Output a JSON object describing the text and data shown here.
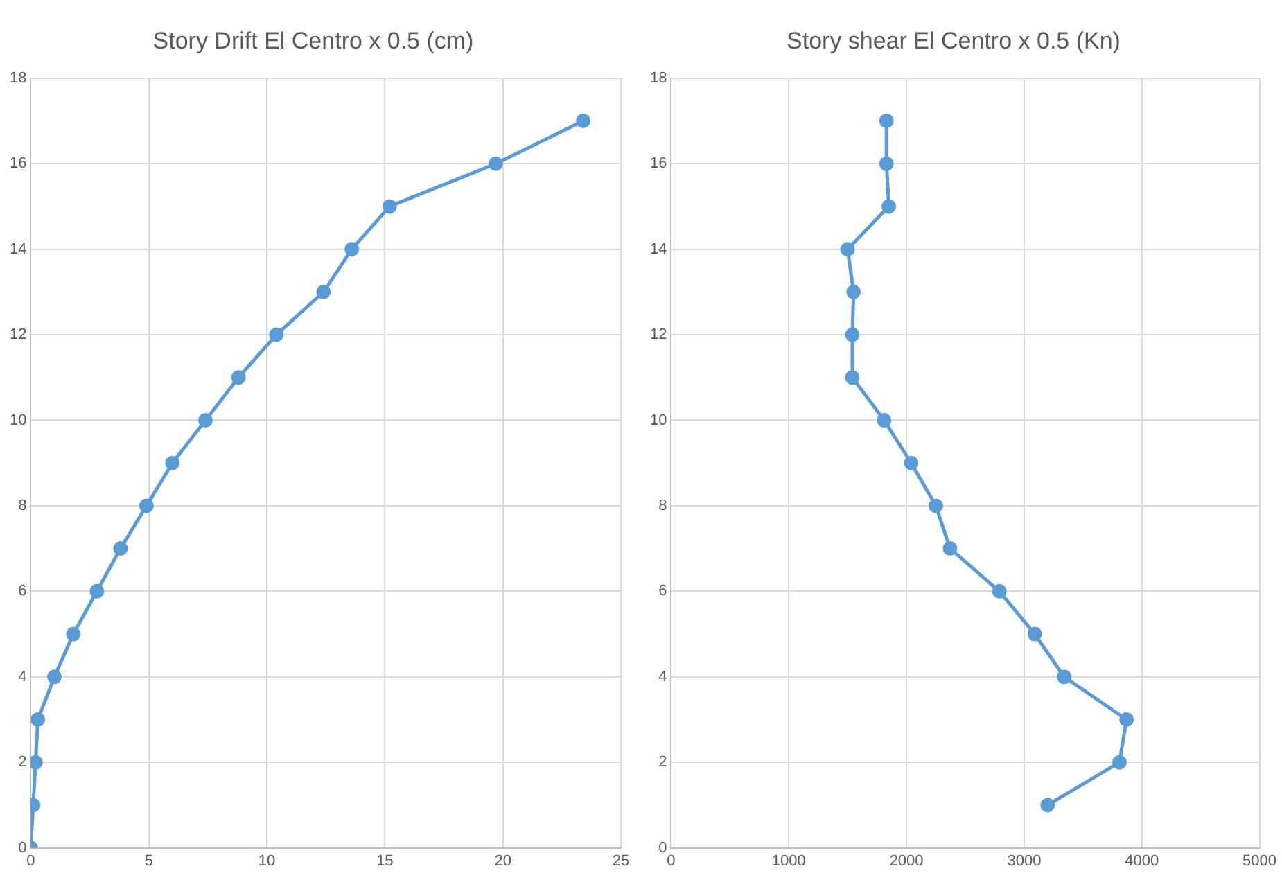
{
  "chart_data": [
    {
      "type": "line",
      "title": "Story Drift El Centro x 0.5 (cm)",
      "marker": "circle",
      "grid": true,
      "xlim": [
        0,
        25
      ],
      "xticks": [
        0,
        5,
        10,
        15,
        20,
        25
      ],
      "ylim": [
        0,
        18
      ],
      "yticks": [
        0,
        2,
        4,
        6,
        8,
        10,
        12,
        14,
        16,
        18
      ],
      "series": [
        {
          "color": "#5b9bd5",
          "x": [
            0,
            0.1,
            0.2,
            0.3,
            1.0,
            1.8,
            2.8,
            3.8,
            4.9,
            6.0,
            7.4,
            8.8,
            10.4,
            12.4,
            13.6,
            15.2,
            19.7,
            23.4
          ],
          "values": [
            0,
            1,
            2,
            3,
            4,
            5,
            6,
            7,
            8,
            9,
            10,
            11,
            12,
            13,
            14,
            15,
            16,
            17
          ]
        }
      ]
    },
    {
      "type": "line",
      "title": "Story shear El Centro x 0.5 (Kn)",
      "marker": "circle",
      "grid": true,
      "xlim": [
        0,
        5000
      ],
      "xticks": [
        0,
        1000,
        2000,
        3000,
        4000,
        5000
      ],
      "ylim": [
        0,
        18
      ],
      "yticks": [
        0,
        2,
        4,
        6,
        8,
        10,
        12,
        14,
        16,
        18
      ],
      "series": [
        {
          "color": "#5b9bd5",
          "x": [
            3200,
            3810,
            3870,
            3340,
            3090,
            2790,
            2370,
            2250,
            2040,
            1810,
            1540,
            1540,
            1550,
            1500,
            1850,
            1830,
            1830
          ],
          "values": [
            1,
            2,
            3,
            4,
            5,
            6,
            7,
            8,
            9,
            10,
            11,
            12,
            13,
            14,
            15,
            16,
            17
          ]
        }
      ]
    }
  ]
}
